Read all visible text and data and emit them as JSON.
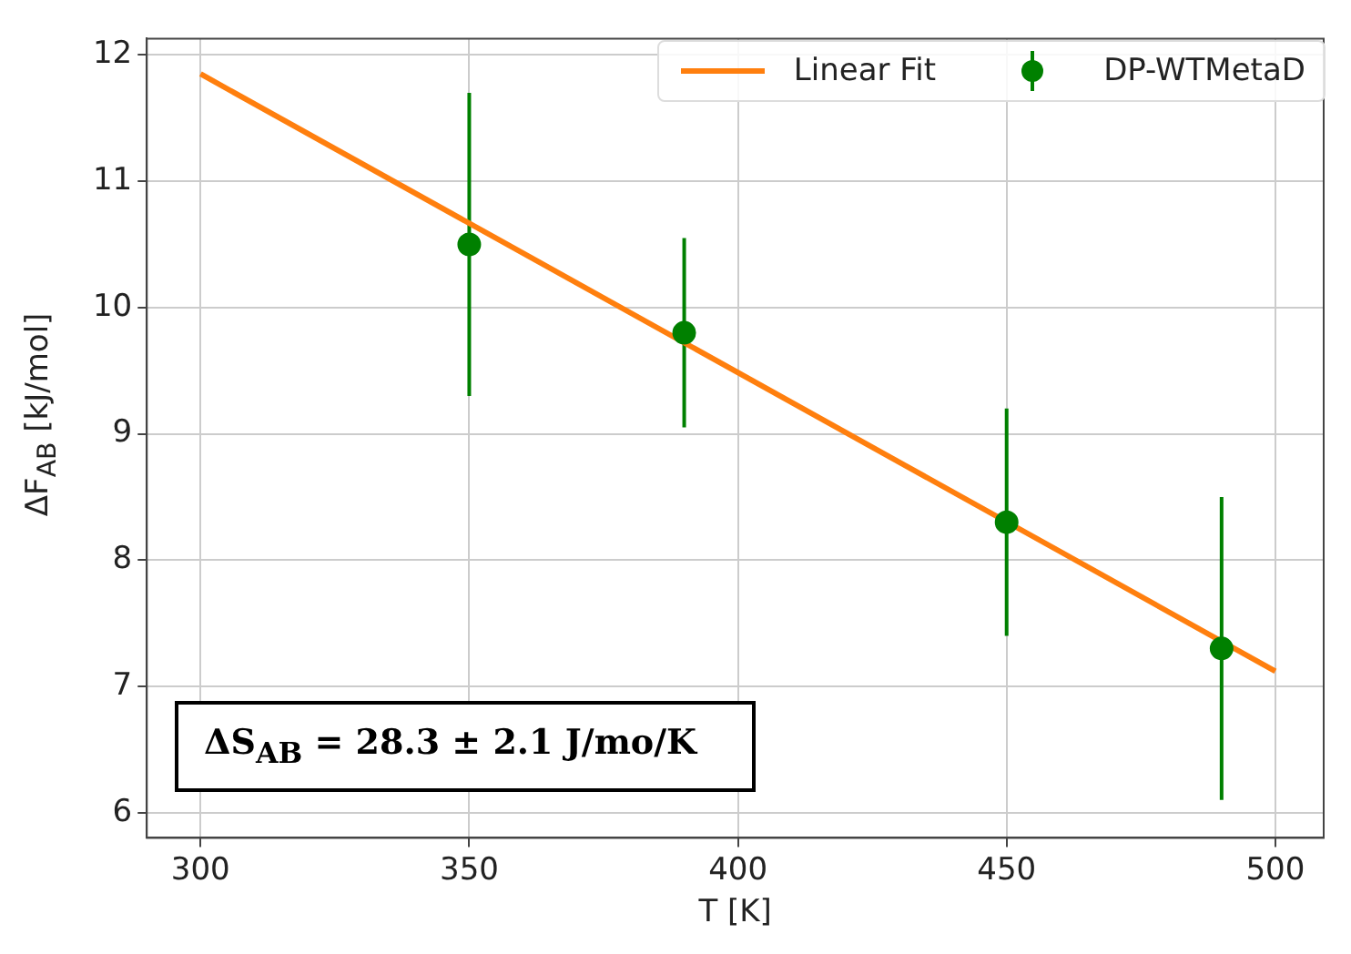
{
  "chart_data": {
    "type": "scatter",
    "xlabel": "T [K]",
    "ylabel": "ΔF$_{AB}$ [kJ/mol]",
    "xlim": [
      290,
      509
    ],
    "ylim": [
      5.8,
      12.13
    ],
    "xticks": [
      300,
      350,
      400,
      450,
      500
    ],
    "yticks": [
      6,
      7,
      8,
      9,
      10,
      11,
      12
    ],
    "grid": true,
    "legend": "top right",
    "series": [
      {
        "name": "Linear Fit",
        "type": "line",
        "color": "#ff7f0e",
        "x": [
          300,
          500
        ],
        "values": [
          11.85,
          7.12
        ],
        "marker": "none"
      },
      {
        "name": "DP-WTMetaD",
        "type": "scatter",
        "color": "#008000",
        "x": [
          350,
          390,
          450,
          490
        ],
        "values": [
          10.5,
          9.8,
          8.3,
          7.3
        ],
        "errors": [
          1.2,
          0.75,
          0.9,
          1.2
        ],
        "marker": "circle"
      }
    ],
    "annotations": [
      "ΔS$_{AB}$ = 28.3 ± 2.1 J/mo/K"
    ]
  }
}
